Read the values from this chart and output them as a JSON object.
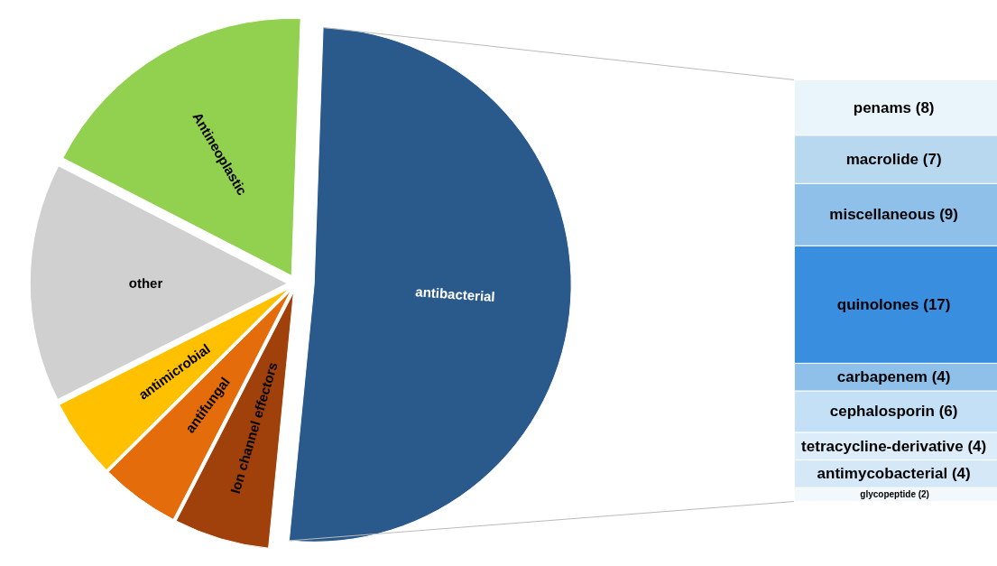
{
  "chart_data": [
    {
      "type": "pie",
      "categories": [
        "antibacterial",
        "Ion channel effectors",
        "antifungal",
        "antimicrobial",
        "other",
        "Antineoplastic"
      ],
      "values": [
        51,
        6,
        5,
        5,
        15,
        18
      ],
      "colors": [
        "#2a5a8c",
        "#a0400a",
        "#e46c0a",
        "#ffc000",
        "#d0d0d0",
        "#92d050"
      ]
    },
    {
      "type": "bar",
      "stacked": true,
      "categories": [
        null
      ],
      "series": [
        {
          "color": "#f2f8fc",
          "values": [
            2
          ],
          "value_labels": [
            "glycopeptide  (2)"
          ]
        },
        {
          "color": "#d4e8f8",
          "values": [
            4
          ],
          "value_labels": [
            "antimycobacterial  (4)"
          ]
        },
        {
          "color": "#dcecf8",
          "values": [
            4
          ],
          "value_labels": [
            "tetracycline-derivative  (4)"
          ]
        },
        {
          "color": "#c4e0f6",
          "values": [
            6
          ],
          "value_labels": [
            "cephalosporin  (6)"
          ]
        },
        {
          "color": "#8ec0ea",
          "values": [
            4
          ],
          "value_labels": [
            "carbapenem  (4)"
          ]
        },
        {
          "color": "#3a8ee0",
          "values": [
            17
          ],
          "value_labels": [
            "quinolones  (17)"
          ]
        },
        {
          "color": "#8ec0ea",
          "values": [
            9
          ],
          "value_labels": [
            "miscellaneous  (9)"
          ]
        },
        {
          "color": "#b8d8f0",
          "values": [
            7
          ],
          "value_labels": [
            "macrolide  (7)"
          ]
        },
        {
          "color": "#eaf4fb",
          "values": [
            8
          ],
          "value_labels": [
            "penams  (8)"
          ]
        }
      ]
    }
  ]
}
